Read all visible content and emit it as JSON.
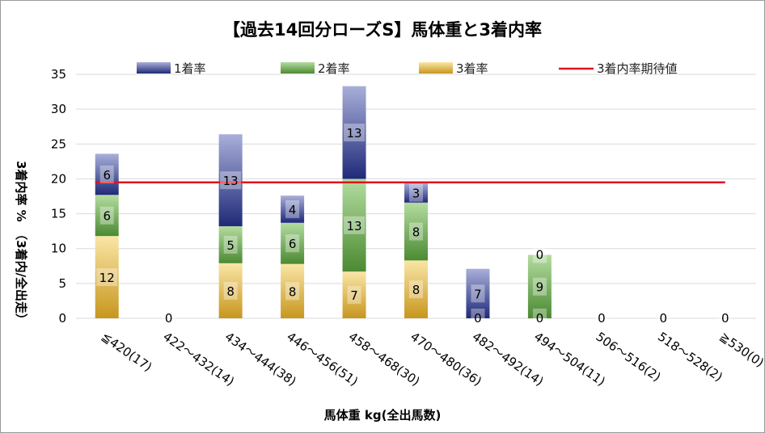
{
  "chart_data": {
    "type": "bar",
    "stacked": true,
    "title": "【過去14回分ローズS】馬体重と3着内率",
    "xlabel": "馬体重 kg(全出馬数)",
    "ylabel": "3着内率 %　（3着内/全出走）",
    "ylim": [
      0,
      35
    ],
    "yticks": [
      "0",
      "5",
      "10",
      "15",
      "20",
      "25",
      "30",
      "35"
    ],
    "grid": true,
    "legend_position": "top",
    "categories": [
      "≦420(17)",
      "422～432(14)",
      "434～444(38)",
      "446～456(51)",
      "458～468(30)",
      "470～480(36)",
      "482～492(14)",
      "494～504(11)",
      "506～516(2)",
      "518～528(2)",
      "≧530(0)"
    ],
    "series": [
      {
        "name": "3着率",
        "color": "#d9a832",
        "values": [
          11.8,
          0,
          7.9,
          7.8,
          6.7,
          8.3,
          0,
          0,
          0,
          0,
          0
        ],
        "labels": [
          "12",
          "0",
          "8",
          "8",
          "7",
          "8",
          "0",
          "0",
          "",
          "",
          ""
        ]
      },
      {
        "name": "2着率",
        "color": "#5a9440",
        "values": [
          5.9,
          0,
          5.3,
          5.9,
          13.3,
          8.3,
          0,
          9.1,
          0,
          0,
          0
        ],
        "labels": [
          "6",
          "",
          "5",
          "6",
          "13",
          "8",
          "",
          "9",
          "",
          "",
          ""
        ]
      },
      {
        "name": "1着率",
        "color": "#2b3a8c",
        "values": [
          5.9,
          0,
          13.2,
          3.9,
          13.3,
          2.8,
          7.1,
          0,
          0,
          0,
          0
        ],
        "labels": [
          "6",
          "",
          "13",
          "4",
          "13",
          "3",
          "7",
          "0",
          "0",
          "0",
          "0"
        ]
      }
    ],
    "reference_line": {
      "name": "3着内率期待値",
      "value": 19.5,
      "color": "#e0141e"
    }
  }
}
